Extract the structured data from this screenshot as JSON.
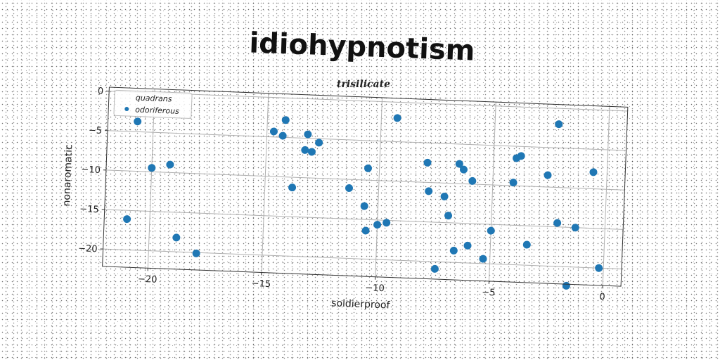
{
  "chart_data": {
    "type": "scatter",
    "title": "idiohypnotism",
    "subtitle": "trisilicate",
    "xlabel": "soldierproof",
    "ylabel": "nonaromatic",
    "xlim": [
      -22,
      0.8
    ],
    "ylim": [
      -22.2,
      0.5
    ],
    "xticks": [
      -20,
      -15,
      -10,
      -5,
      0
    ],
    "yticks": [
      0,
      -5,
      -10,
      -15,
      -20
    ],
    "xtick_labels": [
      "−20",
      "−15",
      "−10",
      "−5",
      "0"
    ],
    "ytick_labels": [
      "0",
      "−5",
      "−10",
      "−15",
      "−20"
    ],
    "grid": true,
    "legend_position": "top-left",
    "legend": [
      "quadrans",
      "odoriferous"
    ],
    "colors": {
      "points": "#1f77b4",
      "grid": "#b0b0b0",
      "frame": "#333333"
    },
    "series": [
      {
        "name": "odoriferous",
        "x": [
          -20.7,
          -21.0,
          -20.0,
          -19.2,
          -18.8,
          -17.9,
          -14.7,
          -14.3,
          -14.2,
          -13.8,
          -13.3,
          -13.2,
          -13.0,
          -12.7,
          -11.3,
          -10.6,
          -10.5,
          -10.5,
          -10.0,
          -9.6,
          -9.3,
          -7.9,
          -7.8,
          -7.4,
          -7.1,
          -6.9,
          -6.6,
          -6.5,
          -6.3,
          -6.0,
          -5.9,
          -5.3,
          -5.0,
          -4.1,
          -4.0,
          -3.8,
          -3.4,
          -2.6,
          -2.2,
          -2.1,
          -1.6,
          -1.3,
          -0.6,
          -0.2
        ],
        "y": [
          -3.7,
          -16.1,
          -9.5,
          -9.0,
          -18.2,
          -20.1,
          -4.3,
          -4.8,
          -2.8,
          -11.3,
          -6.5,
          -4.5,
          -6.7,
          -5.5,
          -11.1,
          -13.3,
          -8.5,
          -16.4,
          -15.6,
          -15.3,
          -2.0,
          -7.5,
          -11.1,
          -20.9,
          -11.7,
          -14.1,
          -18.5,
          -7.5,
          -8.2,
          -17.8,
          -9.6,
          -19.4,
          -15.8,
          -9.6,
          -6.5,
          -6.2,
          -17.4,
          -8.5,
          -2.0,
          -14.5,
          -22.4,
          -15.0,
          -7.9,
          -20.0
        ]
      }
    ]
  }
}
